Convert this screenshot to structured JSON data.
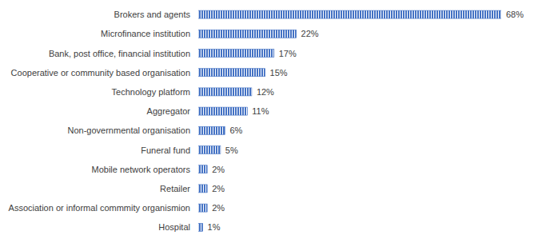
{
  "chart_data": {
    "type": "bar",
    "orientation": "horizontal",
    "categories": [
      "Brokers and agents",
      "Microfinance institution",
      "Bank, post office, financial institution",
      "Cooperative or community based organisation",
      "Technology platform",
      "Aggregator",
      "Non-governmental organisation",
      "Funeral fund",
      "Mobile network operators",
      "Retailer",
      "Association or informal commmity organismion",
      "Hospital"
    ],
    "values": [
      68,
      22,
      17,
      15,
      12,
      11,
      6,
      5,
      2,
      2,
      2,
      1
    ],
    "value_labels": [
      "68%",
      "22%",
      "17%",
      "15%",
      "12%",
      "11%",
      "6%",
      "5%",
      "2%",
      "2%",
      "2%",
      "1%"
    ],
    "color": "#4472c4",
    "xlim": [
      0,
      68
    ],
    "data_labels": true,
    "tick_labels": "y",
    "grid": false
  }
}
